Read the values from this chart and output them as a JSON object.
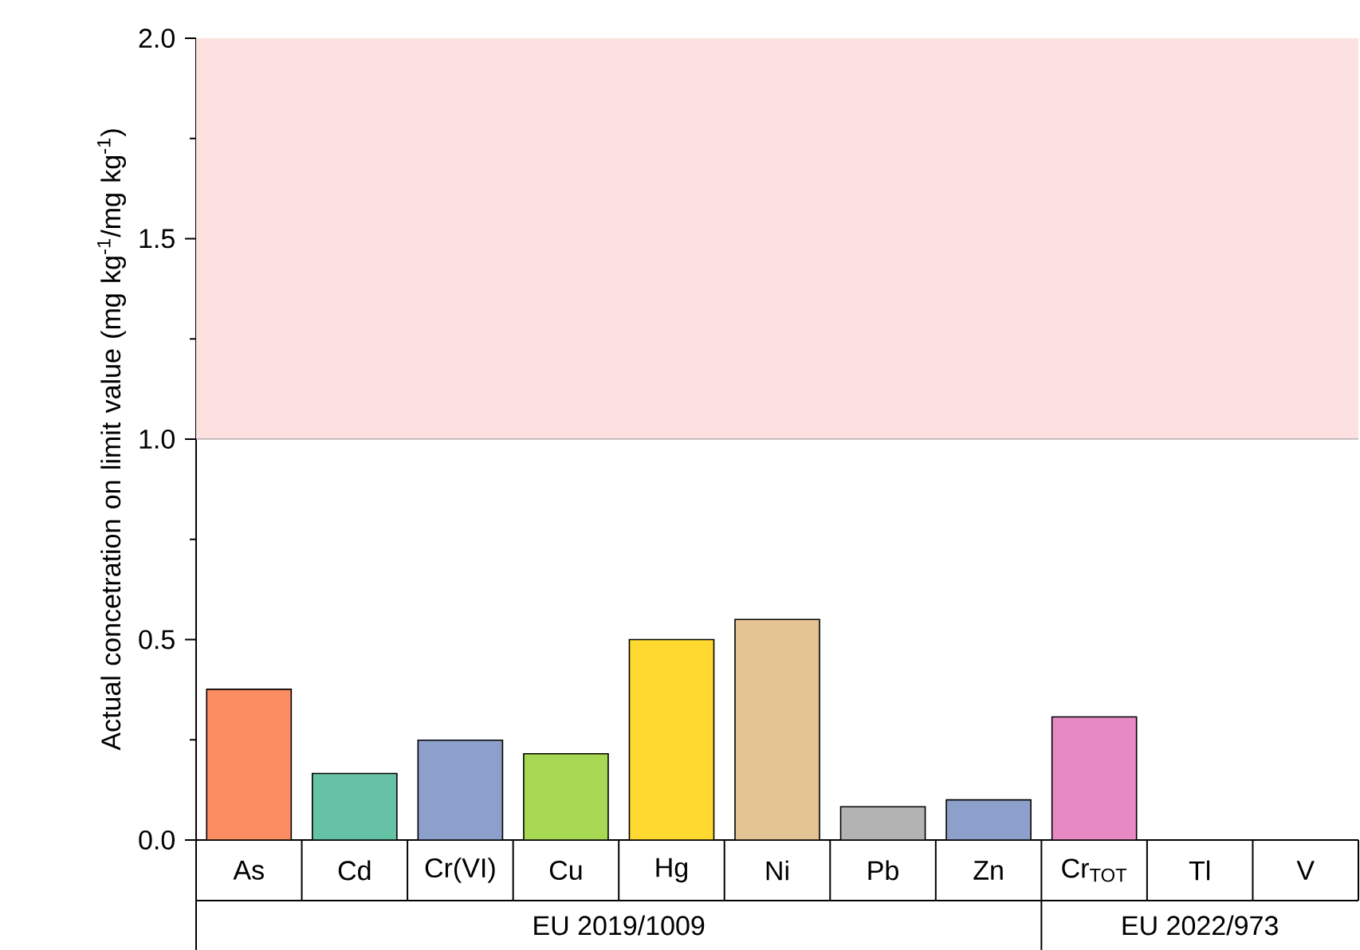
{
  "chart_data": {
    "type": "bar",
    "ylabel": "Actual concetration on limit value (mg kg$^{-1}$/mg kg$^{-1}$)",
    "categories": [
      "As",
      "Cd",
      "Cr(VI)",
      "Cu",
      "Hg",
      "Ni",
      "Pb",
      "Zn",
      "Cr$_{TOT}$",
      "Tl",
      "V"
    ],
    "values": [
      0.376,
      0.166,
      0.249,
      0.215,
      0.5,
      0.55,
      0.083,
      0.1,
      0.307,
      null,
      null
    ],
    "colors": [
      "#fc8d62",
      "#66c2a5",
      "#8da0cb",
      "#a6d854",
      "#ffd92f",
      "#e5c494",
      "#b3b3b3",
      "#8da0cb",
      "#e78ac3",
      "#8da0cb",
      "#8da0cb"
    ],
    "ylim": [
      0,
      2
    ],
    "yticks": [
      {
        "value": 0,
        "label": "0.0"
      },
      {
        "value": 0.5,
        "label": "0.5"
      },
      {
        "value": 1,
        "label": "1.0"
      },
      {
        "value": 1.5,
        "label": "1.5"
      },
      {
        "value": 2,
        "label": "2.0"
      }
    ],
    "bands": [
      {
        "axis": "y",
        "from": 1,
        "to": 2,
        "color": "#fde0e0"
      }
    ],
    "annotations": [
      "EU 2019/1009",
      "EU 2022/973"
    ]
  }
}
